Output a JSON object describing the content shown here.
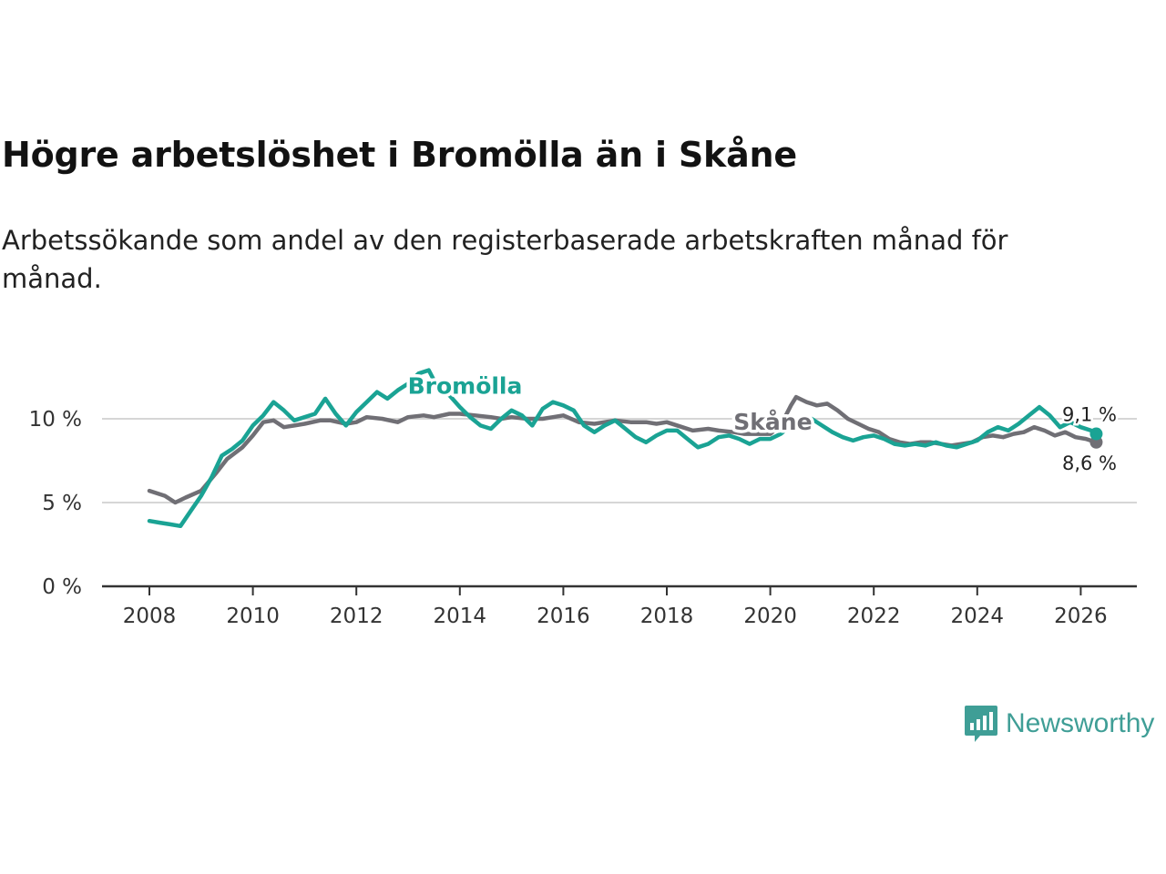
{
  "title": "Högre arbetslöshet i Bromölla än i Skåne",
  "subtitle": "Arbetssökande som andel av den registerbaserade arbetskraften månad för månad.",
  "brand": {
    "name": "Newsworthy",
    "color": "#3f9e96",
    "icon": "newsworthy-logo-icon"
  },
  "chart_data": {
    "type": "line",
    "title": "Högre arbetslöshet i Bromölla än i Skåne",
    "xlabel": "",
    "ylabel": "",
    "xlim": [
      2007.9,
      2026.5
    ],
    "ylim": [
      0,
      14
    ],
    "y_ticks": [
      0,
      5,
      10
    ],
    "y_tick_labels": [
      "0 %",
      "5 %",
      "10 %"
    ],
    "x_ticks": [
      2008,
      2010,
      2012,
      2014,
      2016,
      2018,
      2020,
      2022,
      2024,
      2026
    ],
    "x_tick_labels": [
      "2008",
      "2010",
      "2012",
      "2014",
      "2016",
      "2018",
      "2020",
      "2022",
      "2024",
      "2026"
    ],
    "grid": "horizontal",
    "series": [
      {
        "name": "Skåne",
        "color": "#706f75",
        "inline_label": "Skåne",
        "end_label": "8,6 %",
        "end_value": 8.6,
        "points": [
          [
            2008.0,
            5.7
          ],
          [
            2008.3,
            5.4
          ],
          [
            2008.5,
            5.0
          ],
          [
            2008.7,
            5.3
          ],
          [
            2009.0,
            5.7
          ],
          [
            2009.3,
            6.8
          ],
          [
            2009.5,
            7.6
          ],
          [
            2009.8,
            8.3
          ],
          [
            2010.0,
            9.0
          ],
          [
            2010.2,
            9.8
          ],
          [
            2010.4,
            9.9
          ],
          [
            2010.6,
            9.5
          ],
          [
            2010.8,
            9.6
          ],
          [
            2011.0,
            9.7
          ],
          [
            2011.3,
            9.9
          ],
          [
            2011.5,
            9.9
          ],
          [
            2011.8,
            9.7
          ],
          [
            2012.0,
            9.8
          ],
          [
            2012.2,
            10.1
          ],
          [
            2012.5,
            10.0
          ],
          [
            2012.8,
            9.8
          ],
          [
            2013.0,
            10.1
          ],
          [
            2013.3,
            10.2
          ],
          [
            2013.5,
            10.1
          ],
          [
            2013.8,
            10.3
          ],
          [
            2014.0,
            10.3
          ],
          [
            2014.3,
            10.2
          ],
          [
            2014.6,
            10.1
          ],
          [
            2014.8,
            10.0
          ],
          [
            2015.0,
            10.1
          ],
          [
            2015.3,
            10.0
          ],
          [
            2015.6,
            10.0
          ],
          [
            2015.8,
            10.1
          ],
          [
            2016.0,
            10.2
          ],
          [
            2016.3,
            9.8
          ],
          [
            2016.6,
            9.7
          ],
          [
            2016.8,
            9.8
          ],
          [
            2017.0,
            9.9
          ],
          [
            2017.3,
            9.8
          ],
          [
            2017.6,
            9.8
          ],
          [
            2017.8,
            9.7
          ],
          [
            2018.0,
            9.8
          ],
          [
            2018.3,
            9.5
          ],
          [
            2018.5,
            9.3
          ],
          [
            2018.8,
            9.4
          ],
          [
            2019.0,
            9.3
          ],
          [
            2019.3,
            9.2
          ],
          [
            2019.5,
            9.1
          ],
          [
            2019.8,
            9.1
          ],
          [
            2020.0,
            9.1
          ],
          [
            2020.2,
            9.6
          ],
          [
            2020.4,
            10.8
          ],
          [
            2020.5,
            11.3
          ],
          [
            2020.7,
            11.0
          ],
          [
            2020.9,
            10.8
          ],
          [
            2021.1,
            10.9
          ],
          [
            2021.3,
            10.5
          ],
          [
            2021.5,
            10.0
          ],
          [
            2021.7,
            9.7
          ],
          [
            2021.9,
            9.4
          ],
          [
            2022.1,
            9.2
          ],
          [
            2022.3,
            8.8
          ],
          [
            2022.5,
            8.6
          ],
          [
            2022.7,
            8.5
          ],
          [
            2022.9,
            8.6
          ],
          [
            2023.1,
            8.6
          ],
          [
            2023.3,
            8.5
          ],
          [
            2023.5,
            8.4
          ],
          [
            2023.7,
            8.5
          ],
          [
            2023.9,
            8.6
          ],
          [
            2024.1,
            8.9
          ],
          [
            2024.3,
            9.0
          ],
          [
            2024.5,
            8.9
          ],
          [
            2024.7,
            9.1
          ],
          [
            2024.9,
            9.2
          ],
          [
            2025.1,
            9.5
          ],
          [
            2025.3,
            9.3
          ],
          [
            2025.5,
            9.0
          ],
          [
            2025.7,
            9.2
          ],
          [
            2025.9,
            8.9
          ],
          [
            2026.1,
            8.8
          ],
          [
            2026.3,
            8.6
          ]
        ]
      },
      {
        "name": "Bromölla",
        "color": "#1aa394",
        "inline_label": "Bromölla",
        "end_label": "9,1 %",
        "end_value": 9.1,
        "points": [
          [
            2008.0,
            3.9
          ],
          [
            2008.2,
            3.8
          ],
          [
            2008.4,
            3.7
          ],
          [
            2008.6,
            3.6
          ],
          [
            2008.8,
            4.5
          ],
          [
            2009.0,
            5.4
          ],
          [
            2009.2,
            6.5
          ],
          [
            2009.4,
            7.8
          ],
          [
            2009.6,
            8.2
          ],
          [
            2009.8,
            8.7
          ],
          [
            2010.0,
            9.6
          ],
          [
            2010.2,
            10.2
          ],
          [
            2010.4,
            11.0
          ],
          [
            2010.6,
            10.5
          ],
          [
            2010.8,
            9.9
          ],
          [
            2011.0,
            10.1
          ],
          [
            2011.2,
            10.3
          ],
          [
            2011.4,
            11.2
          ],
          [
            2011.6,
            10.3
          ],
          [
            2011.8,
            9.6
          ],
          [
            2012.0,
            10.4
          ],
          [
            2012.2,
            11.0
          ],
          [
            2012.4,
            11.6
          ],
          [
            2012.6,
            11.2
          ],
          [
            2012.8,
            11.7
          ],
          [
            2013.0,
            12.1
          ],
          [
            2013.2,
            12.7
          ],
          [
            2013.4,
            12.9
          ],
          [
            2013.6,
            11.7
          ],
          [
            2013.8,
            11.4
          ],
          [
            2014.0,
            10.7
          ],
          [
            2014.2,
            10.1
          ],
          [
            2014.4,
            9.6
          ],
          [
            2014.6,
            9.4
          ],
          [
            2014.8,
            10.0
          ],
          [
            2015.0,
            10.5
          ],
          [
            2015.2,
            10.2
          ],
          [
            2015.4,
            9.6
          ],
          [
            2015.6,
            10.6
          ],
          [
            2015.8,
            11.0
          ],
          [
            2016.0,
            10.8
          ],
          [
            2016.2,
            10.5
          ],
          [
            2016.4,
            9.6
          ],
          [
            2016.6,
            9.2
          ],
          [
            2016.8,
            9.6
          ],
          [
            2017.0,
            9.9
          ],
          [
            2017.2,
            9.4
          ],
          [
            2017.4,
            8.9
          ],
          [
            2017.6,
            8.6
          ],
          [
            2017.8,
            9.0
          ],
          [
            2018.0,
            9.3
          ],
          [
            2018.2,
            9.3
          ],
          [
            2018.4,
            8.8
          ],
          [
            2018.6,
            8.3
          ],
          [
            2018.8,
            8.5
          ],
          [
            2019.0,
            8.9
          ],
          [
            2019.2,
            9.0
          ],
          [
            2019.4,
            8.8
          ],
          [
            2019.6,
            8.5
          ],
          [
            2019.8,
            8.8
          ],
          [
            2020.0,
            8.8
          ],
          [
            2020.2,
            9.1
          ],
          [
            2020.4,
            9.6
          ],
          [
            2020.6,
            9.8
          ],
          [
            2020.8,
            10.0
          ],
          [
            2021.0,
            9.6
          ],
          [
            2021.2,
            9.2
          ],
          [
            2021.4,
            8.9
          ],
          [
            2021.6,
            8.7
          ],
          [
            2021.8,
            8.9
          ],
          [
            2022.0,
            9.0
          ],
          [
            2022.2,
            8.8
          ],
          [
            2022.4,
            8.5
          ],
          [
            2022.6,
            8.4
          ],
          [
            2022.8,
            8.5
          ],
          [
            2023.0,
            8.4
          ],
          [
            2023.2,
            8.6
          ],
          [
            2023.4,
            8.4
          ],
          [
            2023.6,
            8.3
          ],
          [
            2023.8,
            8.5
          ],
          [
            2024.0,
            8.7
          ],
          [
            2024.2,
            9.2
          ],
          [
            2024.4,
            9.5
          ],
          [
            2024.6,
            9.3
          ],
          [
            2024.8,
            9.7
          ],
          [
            2025.0,
            10.2
          ],
          [
            2025.2,
            10.7
          ],
          [
            2025.4,
            10.2
          ],
          [
            2025.6,
            9.5
          ],
          [
            2025.8,
            9.8
          ],
          [
            2026.0,
            9.5
          ],
          [
            2026.2,
            9.3
          ],
          [
            2026.3,
            9.1
          ]
        ]
      }
    ]
  }
}
